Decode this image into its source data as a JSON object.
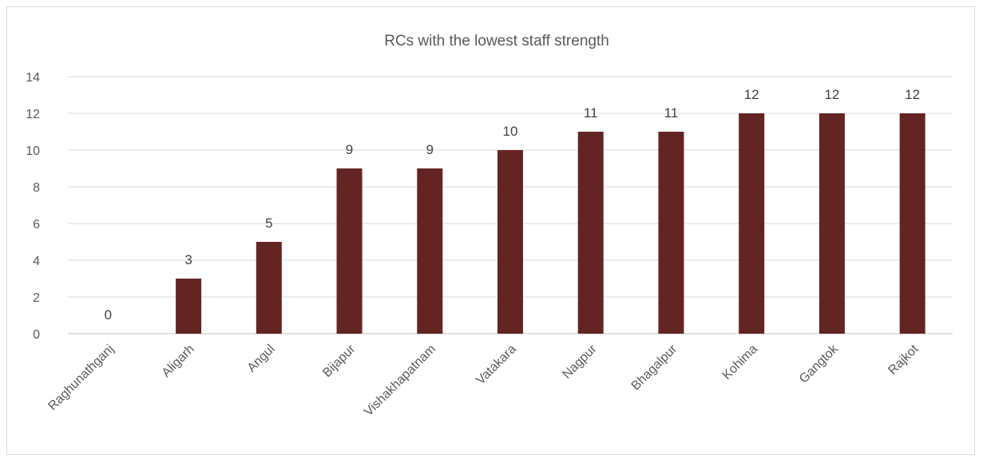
{
  "chart_data": {
    "type": "bar",
    "title": "RCs with the lowest staff strength",
    "categories": [
      "Raghunathganj",
      "Aligarh",
      "Angul",
      "Bijapur",
      "Vishakhapatnam",
      "Vatakara",
      "Nagpur",
      "Bhagalpur",
      "Kohima",
      "Gangtok",
      "Rajkot"
    ],
    "values": [
      0,
      3,
      5,
      9,
      9,
      10,
      11,
      11,
      12,
      12,
      12
    ],
    "ylim": [
      0,
      14
    ],
    "yticks": [
      0,
      2,
      4,
      6,
      8,
      10,
      12,
      14
    ],
    "grid": true,
    "legend": "none",
    "bar_color": "#632523",
    "data_labels": true
  }
}
